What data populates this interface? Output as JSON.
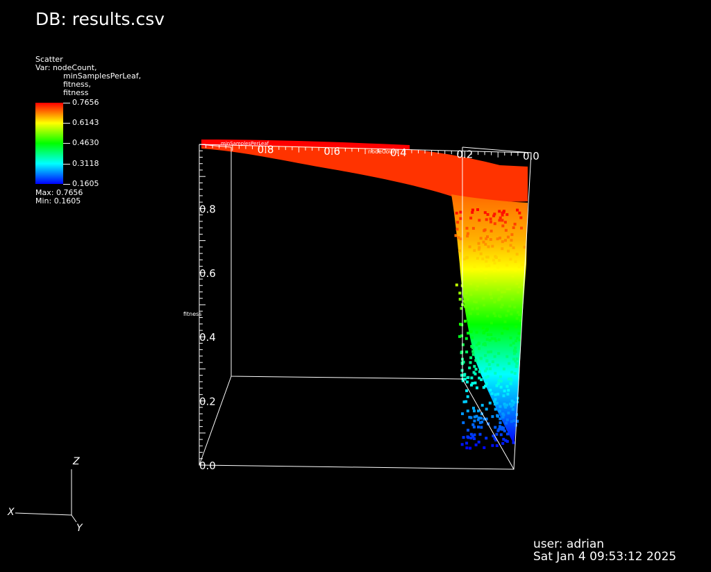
{
  "header": {
    "title": "DB: results.csv"
  },
  "legend": {
    "plot_type": "Scatter",
    "var_lines": [
      "Var: nodeCount,",
      "minSamplesPerLeaf,",
      "fitness,",
      "fitness"
    ],
    "color_ticks": [
      "0.7656",
      "0.6143",
      "0.4630",
      "0.3118",
      "0.1605"
    ],
    "max_label": "Max:  0.7656",
    "min_label": "Min:  0.1605"
  },
  "triad": {
    "x": "X",
    "y": "Y",
    "z": "Z"
  },
  "footer": {
    "user": "user: adrian",
    "date": "Sat Jan  4 09:53:12 2025"
  },
  "colors": {
    "high": "#ff0000",
    "mid_high": "#ffff00",
    "mid": "#00ff00",
    "mid_low": "#00ffff",
    "low": "#0000ff"
  },
  "chart_data": {
    "type": "scatter",
    "variables": [
      "nodeCount",
      "minSamplesPerLeaf",
      "fitness",
      "fitness"
    ],
    "axes": {
      "x": {
        "label": "nodeCount",
        "range": [
          0,
          1
        ],
        "ticks": [
          "0.8",
          "0.6",
          "0.4",
          "0.2",
          "0.0"
        ]
      },
      "y": {
        "label": "minSamplesPerLeaf",
        "range": [
          0,
          1
        ]
      },
      "z": {
        "label": "fitness",
        "range": [
          0,
          1
        ],
        "ticks": [
          "0.0",
          "0.2",
          "0.4",
          "0.6",
          "0.8"
        ]
      }
    },
    "color_range": [
      0.1605,
      0.7656
    ],
    "profile": [
      {
        "nodeCount": 1.0,
        "fitness": 0.99
      },
      {
        "nodeCount": 0.8,
        "fitness": 0.985
      },
      {
        "nodeCount": 0.6,
        "fitness": 0.975
      },
      {
        "nodeCount": 0.4,
        "fitness": 0.95
      },
      {
        "nodeCount": 0.25,
        "fitness": 0.9
      },
      {
        "nodeCount": 0.18,
        "fitness": 0.8
      },
      {
        "nodeCount": 0.15,
        "fitness": 0.6
      },
      {
        "nodeCount": 0.12,
        "fitness": 0.4
      },
      {
        "nodeCount": 0.08,
        "fitness": 0.2
      },
      {
        "nodeCount": 0.05,
        "fitness": 0.05
      }
    ],
    "grid": false
  }
}
